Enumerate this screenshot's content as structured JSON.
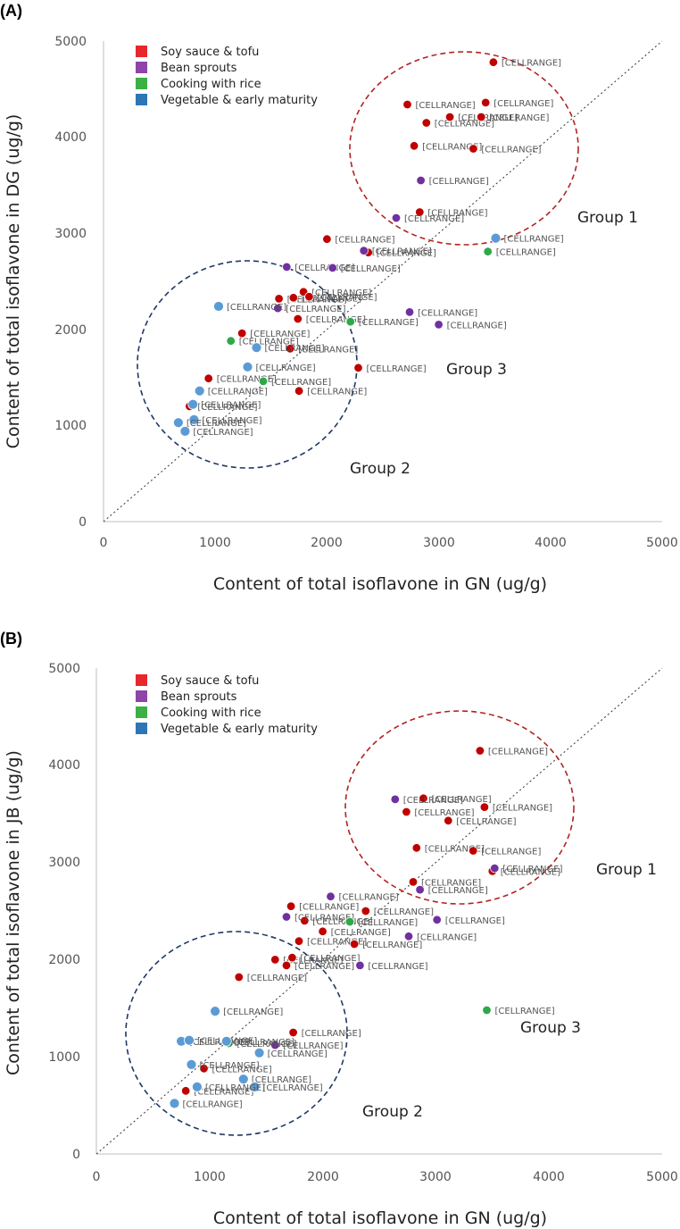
{
  "chart_data": [
    {
      "panel": "(A)",
      "type": "scatter",
      "xlabel": "Content of total isoflavone in GN (ug/g)",
      "ylabel": "Content of total isoflavone in DG (ug/g)",
      "xlim": [
        0,
        5000
      ],
      "ylim": [
        0,
        5000
      ],
      "xticks": [
        "0",
        "1000",
        "2000",
        "3000",
        "4000",
        "5000"
      ],
      "yticks": [
        "0",
        "1000",
        "2000",
        "3000",
        "4000",
        "5000"
      ],
      "grid": false,
      "legend_position": "top-left",
      "reference_line": "y = x",
      "point_label": "[CELLRANGE]",
      "series": [
        {
          "name": "Soy sauce & tofu",
          "color": "#c00000",
          "points": [
            [
              3490,
              4780
            ],
            [
              2720,
              4340
            ],
            [
              3420,
              4360
            ],
            [
              2890,
              4150
            ],
            [
              3100,
              4210
            ],
            [
              3380,
              4210
            ],
            [
              2780,
              3910
            ],
            [
              3310,
              3880
            ],
            [
              2830,
              3220
            ],
            [
              2000,
              2940
            ],
            [
              2370,
              2800
            ],
            [
              1570,
              2320
            ],
            [
              1700,
              2330
            ],
            [
              1790,
              2390
            ],
            [
              1840,
              2340
            ],
            [
              1740,
              2110
            ],
            [
              1240,
              1960
            ],
            [
              1670,
              1800
            ],
            [
              2280,
              1600
            ],
            [
              940,
              1490
            ],
            [
              1750,
              1360
            ],
            [
              770,
              1200
            ]
          ]
        },
        {
          "name": "Bean sprouts",
          "color": "#7030a0",
          "points": [
            [
              2840,
              3550
            ],
            [
              2620,
              3160
            ],
            [
              2330,
              2820
            ],
            [
              1640,
              2650
            ],
            [
              2050,
              2640
            ],
            [
              1560,
              2220
            ],
            [
              2740,
              2180
            ],
            [
              3000,
              2050
            ]
          ]
        },
        {
          "name": "Cooking with rice",
          "color": "#2ea84a",
          "points": [
            [
              3440,
              2810
            ],
            [
              2210,
              2080
            ],
            [
              1140,
              1880
            ],
            [
              1430,
              1460
            ]
          ]
        },
        {
          "name": "Vegetable & early maturity",
          "color": "#5b9bd5",
          "points": [
            [
              3510,
              2950
            ],
            [
              1030,
              2240
            ],
            [
              1370,
              1810
            ],
            [
              1290,
              1610
            ],
            [
              860,
              1360
            ],
            [
              800,
              1220
            ],
            [
              810,
              1060
            ],
            [
              670,
              1030
            ],
            [
              730,
              940
            ]
          ]
        }
      ],
      "annotations": [
        "Group 1",
        "Group 2",
        "Group 3"
      ]
    },
    {
      "panel": "(B)",
      "type": "scatter",
      "xlabel": "Content of total isoflavone in GN (ug/g)",
      "ylabel": "Content of total isoflavone in JB (ug/g)",
      "xlim": [
        0,
        5000
      ],
      "ylim": [
        0,
        5000
      ],
      "xticks": [
        "0",
        "1000",
        "2000",
        "3000",
        "4000",
        "5000"
      ],
      "yticks": [
        "0",
        "1000",
        "2000",
        "3000",
        "4000",
        "5000"
      ],
      "grid": false,
      "legend_position": "top-left",
      "reference_line": "y = x",
      "point_label": "[CELLRANGE]",
      "series": [
        {
          "name": "Soy sauce & tofu",
          "color": "#c00000",
          "points": [
            [
              3390,
              4150
            ],
            [
              2890,
              3660
            ],
            [
              2740,
              3520
            ],
            [
              3430,
              3570
            ],
            [
              3110,
              3430
            ],
            [
              2830,
              3150
            ],
            [
              3330,
              3120
            ],
            [
              3500,
              2910
            ],
            [
              2800,
              2800
            ],
            [
              2380,
              2500
            ],
            [
              1720,
              2550
            ],
            [
              1840,
              2400
            ],
            [
              2000,
              2290
            ],
            [
              1790,
              2190
            ],
            [
              2280,
              2160
            ],
            [
              1580,
              2000
            ],
            [
              1730,
              2020
            ],
            [
              1680,
              1940
            ],
            [
              1260,
              1820
            ],
            [
              1740,
              1250
            ],
            [
              950,
              880
            ],
            [
              790,
              650
            ]
          ]
        },
        {
          "name": "Bean sprouts",
          "color": "#7030a0",
          "points": [
            [
              2640,
              3650
            ],
            [
              3520,
              2940
            ],
            [
              2860,
              2720
            ],
            [
              2070,
              2650
            ],
            [
              1680,
              2440
            ],
            [
              3010,
              2410
            ],
            [
              2760,
              2240
            ],
            [
              2330,
              1940
            ],
            [
              1580,
              1120
            ]
          ]
        },
        {
          "name": "Cooking with rice",
          "color": "#2ea84a",
          "points": [
            [
              2240,
              2390
            ],
            [
              3450,
              1480
            ],
            [
              1170,
              1140
            ]
          ]
        },
        {
          "name": "Vegetable & early maturity",
          "color": "#5b9bd5",
          "points": [
            [
              1050,
              1470
            ],
            [
              750,
              1160
            ],
            [
              820,
              1170
            ],
            [
              1150,
              1160
            ],
            [
              1440,
              1040
            ],
            [
              840,
              920
            ],
            [
              1300,
              770
            ],
            [
              1400,
              690
            ],
            [
              890,
              690
            ],
            [
              690,
              520
            ]
          ]
        }
      ],
      "annotations": [
        "Group 1",
        "Group 2",
        "Group 3"
      ]
    }
  ]
}
